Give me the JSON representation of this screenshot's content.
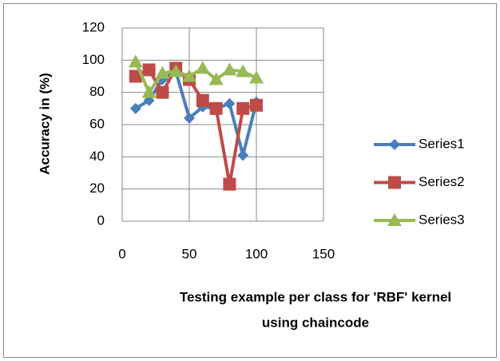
{
  "chart_data": {
    "type": "line",
    "x": [
      10,
      20,
      30,
      40,
      50,
      60,
      70,
      80,
      90,
      100
    ],
    "series": [
      {
        "name": "Series1",
        "color": "#4a7ebb",
        "marker": "diamond",
        "values": [
          70,
          75,
          88,
          93,
          64,
          71,
          70,
          73,
          41,
          74
        ]
      },
      {
        "name": "Series2",
        "color": "#be4b48",
        "marker": "square",
        "values": [
          90,
          94,
          80,
          95,
          88,
          75,
          70,
          23,
          70,
          72
        ]
      },
      {
        "name": "Series3",
        "color": "#98b954",
        "marker": "triangle",
        "values": [
          99,
          80,
          92,
          93,
          90,
          95,
          88,
          94,
          93,
          89
        ]
      }
    ],
    "xlim": [
      0,
      150
    ],
    "xticks": [
      0,
      50,
      100,
      150
    ],
    "ylim": [
      0,
      120
    ],
    "yticks": [
      0,
      20,
      40,
      60,
      80,
      100,
      120
    ],
    "y_label": "Accuracy in (%)",
    "x_label": [
      "Testing example per class for 'RBF' kernel",
      "using chaincode"
    ],
    "grid": true,
    "legend": "right"
  }
}
